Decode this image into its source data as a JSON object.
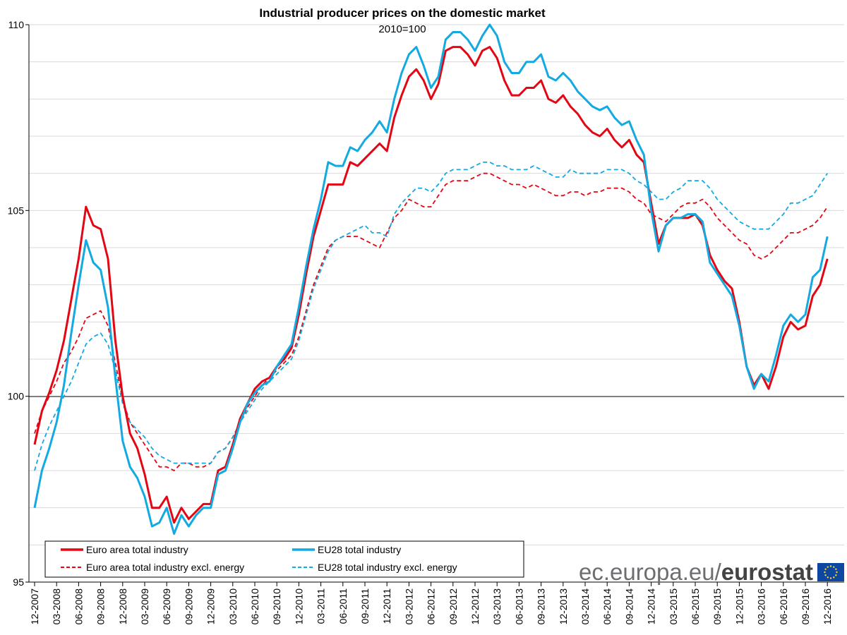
{
  "chart_data": {
    "type": "line",
    "title": "Industrial producer prices on the domestic market",
    "subtitle": "2010=100",
    "xlabel": "",
    "ylabel": "",
    "ylim": [
      95,
      110
    ],
    "yticks": [
      "95",
      "100",
      "105",
      "110"
    ],
    "grid": "horizontal",
    "legend": "bottom",
    "x_tick_labels": [
      "12-2007",
      "03-2008",
      "06-2008",
      "09-2008",
      "12-2008",
      "03-2009",
      "06-2009",
      "09-2009",
      "12-2009",
      "03-2010",
      "06-2010",
      "09-2010",
      "12-2010",
      "03-2011",
      "06-2011",
      "09-2011",
      "12-2011",
      "03-2012",
      "06-2012",
      "09-2012",
      "12-2012",
      "03-2013",
      "06-2013",
      "09-2013",
      "12-2013",
      "03-2014",
      "06-2014",
      "09-2014",
      "12-2014",
      "03-2015",
      "06-2015",
      "09-2015",
      "12-2015",
      "03-2016",
      "06-2016",
      "09-2016",
      "12-2016"
    ],
    "series": [
      {
        "name": "Euro area total industry",
        "color": "#e30613",
        "dash": "solid",
        "values": [
          98.7,
          99.6,
          100.1,
          100.7,
          101.5,
          102.6,
          103.7,
          105.1,
          104.6,
          104.5,
          103.7,
          101.5,
          100.0,
          99.0,
          98.6,
          97.9,
          97.0,
          97.0,
          97.3,
          96.6,
          97.0,
          96.7,
          96.9,
          97.1,
          97.1,
          98.0,
          98.1,
          98.7,
          99.4,
          99.8,
          100.2,
          100.4,
          100.5,
          100.8,
          101.0,
          101.3,
          102.2,
          103.3,
          104.3,
          105.0,
          105.7,
          105.7,
          105.7,
          106.3,
          106.2,
          106.4,
          106.6,
          106.8,
          106.6,
          107.5,
          108.1,
          108.6,
          108.8,
          108.5,
          108.0,
          108.4,
          109.3,
          109.4,
          109.4,
          109.2,
          108.9,
          109.3,
          109.4,
          109.1,
          108.5,
          108.1,
          108.1,
          108.3,
          108.3,
          108.5,
          108.0,
          107.9,
          108.1,
          107.8,
          107.6,
          107.3,
          107.1,
          107.0,
          107.2,
          106.9,
          106.7,
          106.9,
          106.5,
          106.3,
          105.2,
          104.1,
          104.6,
          104.8,
          104.8,
          104.8,
          104.9,
          104.6,
          103.8,
          103.4,
          103.1,
          102.9,
          102.0,
          100.8,
          100.3,
          100.6,
          100.2,
          100.8,
          101.6,
          102.0,
          101.8,
          101.9,
          102.7,
          103.0,
          103.7
        ]
      },
      {
        "name": "EU28 total industry",
        "color": "#13a9e1",
        "dash": "solid",
        "values": [
          97.0,
          98.0,
          98.6,
          99.3,
          100.3,
          101.7,
          103.0,
          104.2,
          103.6,
          103.4,
          102.4,
          100.5,
          98.8,
          98.1,
          97.8,
          97.3,
          96.5,
          96.6,
          97.0,
          96.3,
          96.8,
          96.5,
          96.8,
          97.0,
          97.0,
          97.9,
          98.0,
          98.6,
          99.3,
          99.8,
          100.1,
          100.3,
          100.4,
          100.8,
          101.1,
          101.4,
          102.4,
          103.5,
          104.5,
          105.3,
          106.3,
          106.2,
          106.2,
          106.7,
          106.6,
          106.9,
          107.1,
          107.4,
          107.1,
          108.0,
          108.7,
          109.2,
          109.4,
          108.9,
          108.3,
          108.6,
          109.6,
          109.8,
          109.8,
          109.6,
          109.3,
          109.7,
          110.0,
          109.7,
          109.0,
          108.7,
          108.7,
          109.0,
          109.0,
          109.2,
          108.6,
          108.5,
          108.7,
          108.5,
          108.2,
          108.0,
          107.8,
          107.7,
          107.8,
          107.5,
          107.3,
          107.4,
          106.9,
          106.5,
          105.0,
          103.9,
          104.6,
          104.8,
          104.8,
          104.9,
          104.9,
          104.7,
          103.6,
          103.3,
          103.0,
          102.7,
          101.9,
          100.8,
          100.2,
          100.6,
          100.4,
          101.1,
          101.9,
          102.2,
          102.0,
          102.2,
          103.2,
          103.4,
          104.3
        ]
      },
      {
        "name": "Euro area total industry excl. energy",
        "color": "#e30613",
        "dash": "dashed",
        "values": [
          99.0,
          99.6,
          100.0,
          100.4,
          100.9,
          101.2,
          101.6,
          102.1,
          102.2,
          102.3,
          101.9,
          100.9,
          99.9,
          99.3,
          99.0,
          98.7,
          98.4,
          98.1,
          98.1,
          98.0,
          98.2,
          98.2,
          98.1,
          98.1,
          98.2,
          98.5,
          98.6,
          98.9,
          99.3,
          99.7,
          100.0,
          100.3,
          100.5,
          100.7,
          100.9,
          101.1,
          101.6,
          102.3,
          103.0,
          103.5,
          104.0,
          104.2,
          104.3,
          104.3,
          104.3,
          104.2,
          104.1,
          104.0,
          104.4,
          104.8,
          105.0,
          105.3,
          105.2,
          105.1,
          105.1,
          105.4,
          105.7,
          105.8,
          105.8,
          105.8,
          105.9,
          106.0,
          106.0,
          105.9,
          105.8,
          105.7,
          105.7,
          105.6,
          105.7,
          105.6,
          105.5,
          105.4,
          105.4,
          105.5,
          105.5,
          105.4,
          105.5,
          105.5,
          105.6,
          105.6,
          105.6,
          105.5,
          105.3,
          105.2,
          104.9,
          104.8,
          104.7,
          104.9,
          105.1,
          105.2,
          105.2,
          105.3,
          105.1,
          104.8,
          104.6,
          104.4,
          104.2,
          104.1,
          103.8,
          103.7,
          103.8,
          104.0,
          104.2,
          104.4,
          104.4,
          104.5,
          104.6,
          104.8,
          105.1
        ]
      },
      {
        "name": "EU28 total industry excl. energy",
        "color": "#13a9e1",
        "dash": "dashed",
        "values": [
          98.0,
          98.7,
          99.2,
          99.6,
          100.0,
          100.4,
          100.9,
          101.4,
          101.6,
          101.7,
          101.4,
          100.7,
          99.8,
          99.3,
          99.1,
          98.9,
          98.6,
          98.4,
          98.3,
          98.2,
          98.2,
          98.2,
          98.2,
          98.2,
          98.2,
          98.5,
          98.6,
          98.9,
          99.3,
          99.6,
          99.9,
          100.2,
          100.4,
          100.6,
          100.8,
          101.0,
          101.5,
          102.2,
          102.9,
          103.4,
          103.9,
          104.2,
          104.3,
          104.4,
          104.5,
          104.6,
          104.4,
          104.4,
          104.3,
          104.9,
          105.2,
          105.4,
          105.6,
          105.6,
          105.5,
          105.7,
          106.0,
          106.1,
          106.1,
          106.1,
          106.2,
          106.3,
          106.3,
          106.2,
          106.2,
          106.1,
          106.1,
          106.1,
          106.2,
          106.1,
          106.0,
          105.9,
          105.9,
          106.1,
          106.0,
          106.0,
          106.0,
          106.0,
          106.1,
          106.1,
          106.1,
          106.0,
          105.8,
          105.7,
          105.5,
          105.3,
          105.3,
          105.5,
          105.6,
          105.8,
          105.8,
          105.8,
          105.6,
          105.3,
          105.1,
          104.9,
          104.7,
          104.6,
          104.5,
          104.5,
          104.5,
          104.7,
          104.9,
          105.2,
          105.2,
          105.3,
          105.4,
          105.7,
          106.0
        ]
      }
    ]
  },
  "branding": {
    "text_regular": "ec.europa.eu/",
    "text_bold": "eurostat"
  }
}
